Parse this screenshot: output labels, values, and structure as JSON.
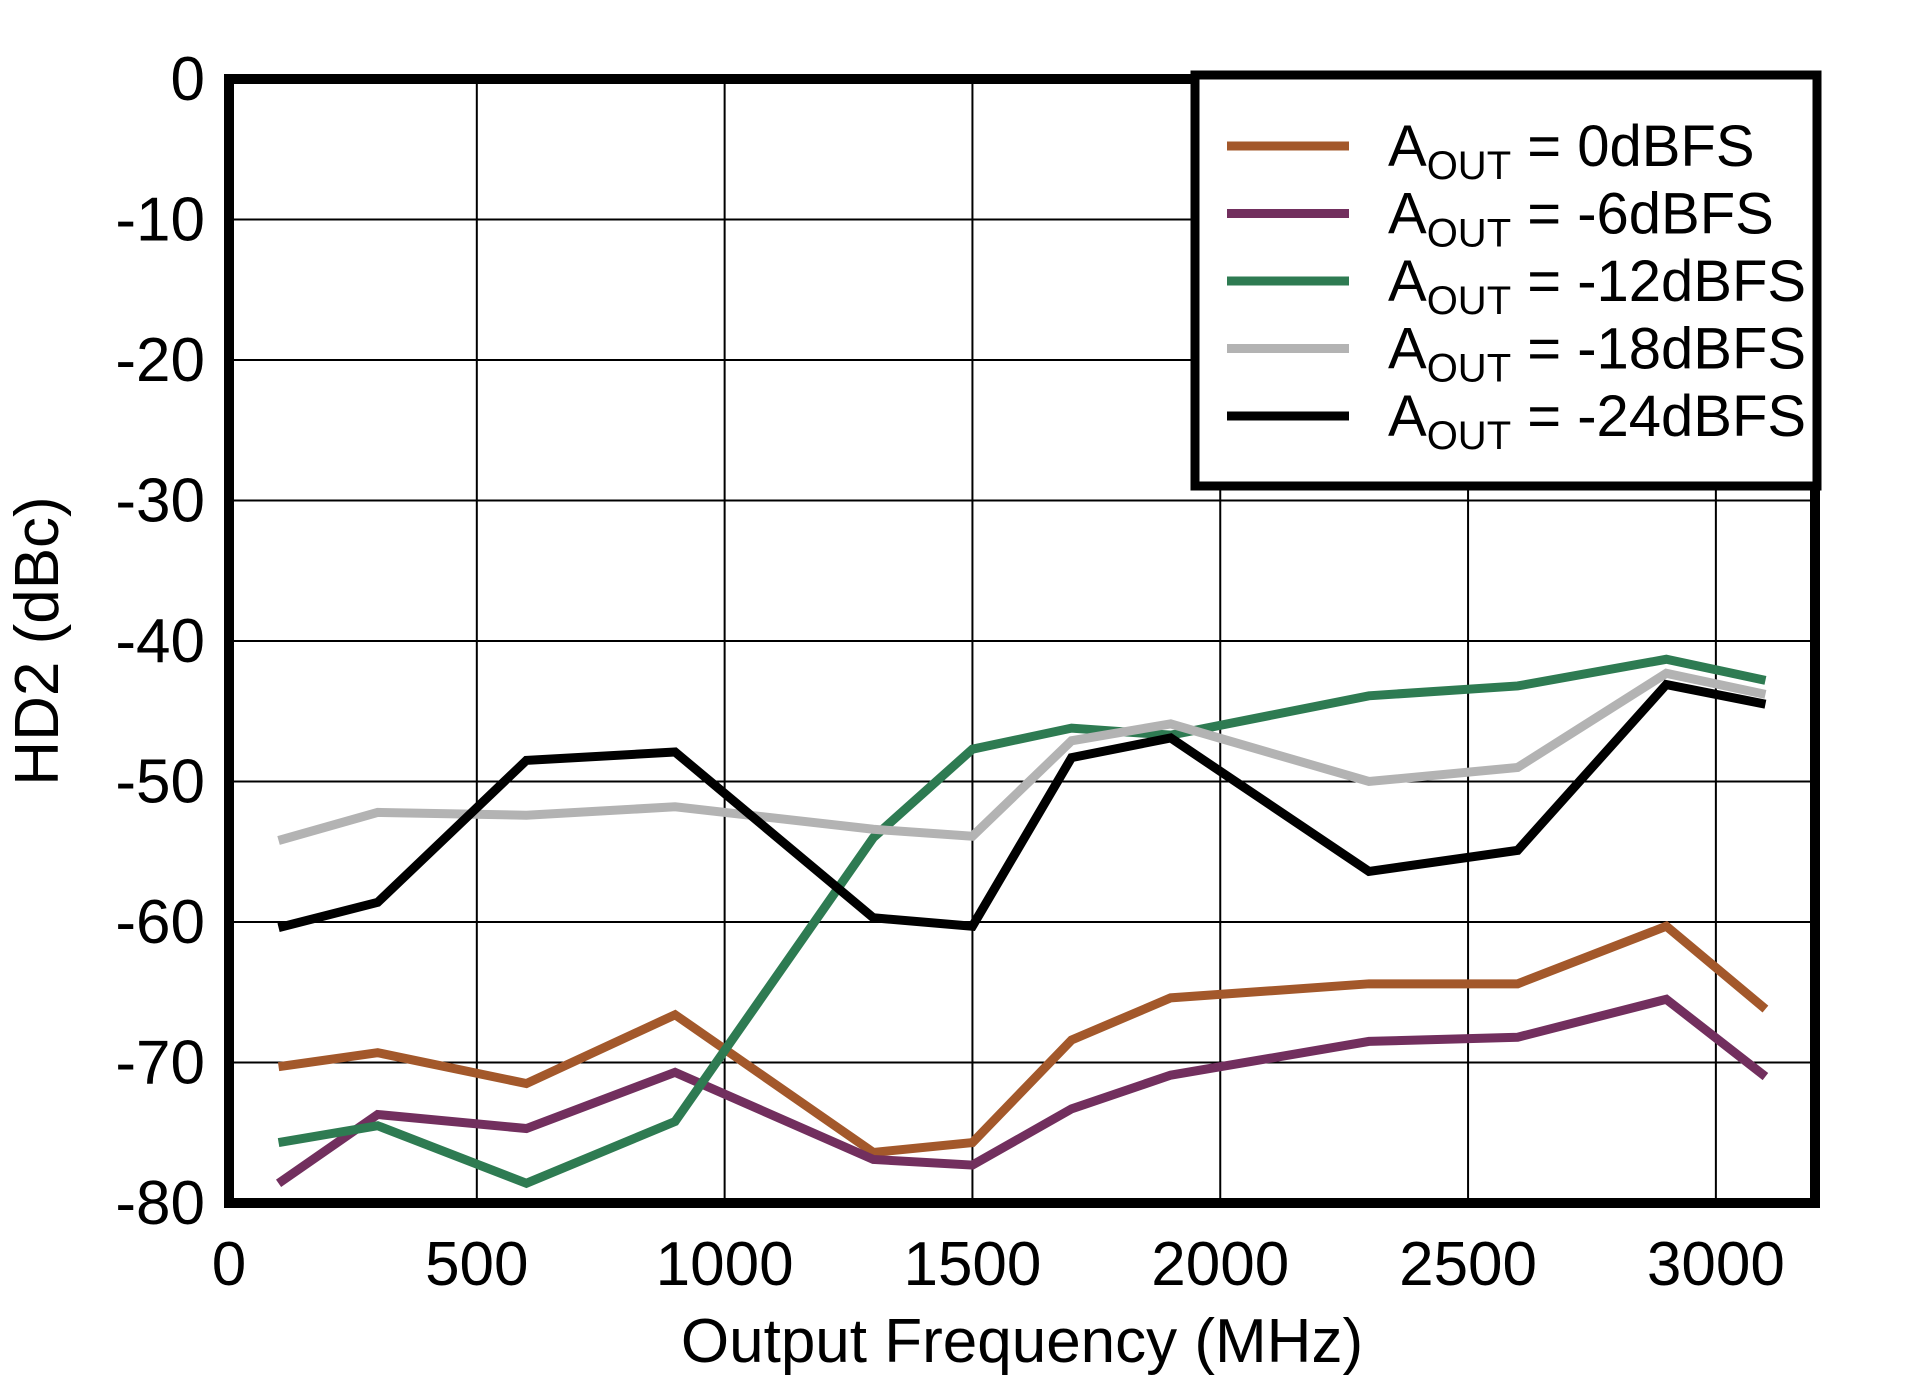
{
  "chart_data": {
    "type": "line",
    "title": "",
    "xlabel": "Output Frequency (MHz)",
    "ylabel": "HD2 (dBc)",
    "xlim": [
      0,
      3200
    ],
    "ylim": [
      -80,
      0
    ],
    "xticks": [
      0,
      500,
      1000,
      1500,
      2000,
      2500,
      3000
    ],
    "yticks": [
      0,
      -10,
      -20,
      -30,
      -40,
      -50,
      -60,
      -70,
      -80
    ],
    "grid": true,
    "legend_position": "top-right",
    "x": [
      100,
      300,
      600,
      900,
      1300,
      1500,
      1700,
      1900,
      2300,
      2600,
      2900,
      3100
    ],
    "series": [
      {
        "name": "AOUT = 0dBFS",
        "legend": {
          "prefix": "A",
          "sub": "OUT",
          "suffix": " = 0dBFS"
        },
        "color": "#A3582B",
        "values": [
          -70.3,
          -69.3,
          -71.5,
          -66.6,
          -76.4,
          -75.7,
          -68.4,
          -65.4,
          -64.4,
          -64.4,
          -60.3,
          -66.2
        ]
      },
      {
        "name": "AOUT = -6dBFS",
        "legend": {
          "prefix": "A",
          "sub": "OUT",
          "suffix": " = -6dBFS"
        },
        "color": "#722F5E",
        "values": [
          -78.6,
          -73.7,
          -74.7,
          -70.7,
          -76.9,
          -77.3,
          -73.3,
          -70.9,
          -68.5,
          -68.2,
          -65.5,
          -71.0
        ]
      },
      {
        "name": "AOUT = -12dBFS",
        "legend": {
          "prefix": "A",
          "sub": "OUT",
          "suffix": " = -12dBFS"
        },
        "color": "#2E7B52",
        "values": [
          -75.7,
          -74.5,
          -78.6,
          -74.2,
          -54.0,
          -47.7,
          -46.2,
          -46.7,
          -43.9,
          -43.2,
          -41.3,
          -42.8
        ]
      },
      {
        "name": "AOUT = -18dBFS",
        "legend": {
          "prefix": "A",
          "sub": "OUT",
          "suffix": " = -18dBFS"
        },
        "color": "#B3B3B3",
        "values": [
          -54.2,
          -52.2,
          -52.4,
          -51.8,
          -53.4,
          -53.9,
          -47.1,
          -45.9,
          -50.0,
          -49.0,
          -42.3,
          -43.8
        ]
      },
      {
        "name": "AOUT = -24dBFS",
        "legend": {
          "prefix": "A",
          "sub": "OUT",
          "suffix": " = -24dBFS"
        },
        "color": "#000000",
        "values": [
          -60.4,
          -58.6,
          -48.5,
          -47.9,
          -59.7,
          -60.3,
          -48.3,
          -46.9,
          -56.4,
          -54.9,
          -43.1,
          -44.5
        ]
      }
    ]
  }
}
